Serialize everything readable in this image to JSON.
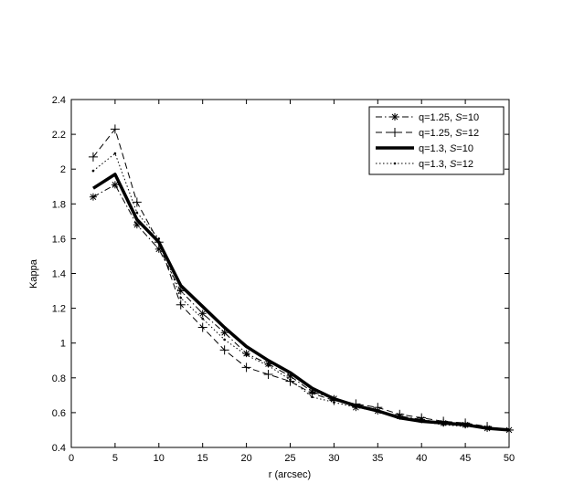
{
  "chart_data": {
    "type": "line",
    "xlabel": "r (arcsec)",
    "ylabel": "Kappa",
    "xlim": [
      0,
      50
    ],
    "ylim": [
      0.4,
      2.4
    ],
    "x_ticks": [
      0,
      5,
      10,
      15,
      20,
      25,
      30,
      35,
      40,
      45,
      50
    ],
    "y_ticks": [
      0.4,
      0.6,
      0.8,
      1.0,
      1.2,
      1.4,
      1.6,
      1.8,
      2.0,
      2.2,
      2.4
    ],
    "x_tick_labels": [
      "0",
      "5",
      "10",
      "15",
      "20",
      "25",
      "30",
      "35",
      "40",
      "45",
      "50"
    ],
    "y_tick_labels": [
      "0.4",
      "0.6",
      "0.8",
      "1",
      "1.2",
      "1.4",
      "1.6",
      "1.8",
      "2",
      "2.2",
      "2.4"
    ],
    "grid": false,
    "legend_position": "top-right",
    "series": [
      {
        "name_parts": [
          "q=1.25, ",
          "S",
          "=10"
        ],
        "style": "dashdot",
        "marker": "star",
        "x": [
          2.5,
          5,
          7.5,
          10,
          12.5,
          15,
          17.5,
          20,
          22.5,
          25,
          27.5,
          30,
          32.5,
          35,
          37.5,
          40,
          42.5,
          45,
          47.5,
          50
        ],
        "values": [
          1.84,
          1.91,
          1.68,
          1.54,
          1.3,
          1.17,
          1.06,
          0.94,
          0.88,
          0.81,
          0.72,
          0.68,
          0.63,
          0.61,
          0.58,
          0.56,
          0.54,
          0.53,
          0.51,
          0.5
        ]
      },
      {
        "name_parts": [
          "q=1.25, ",
          "S",
          "=12"
        ],
        "style": "dashed",
        "marker": "plus",
        "x": [
          2.5,
          5,
          7.5,
          10,
          12.5,
          15,
          17.5,
          20,
          22.5,
          25,
          27.5,
          30,
          32.5,
          35,
          37.5,
          40,
          42.5,
          45,
          47.5,
          50
        ],
        "values": [
          2.07,
          2.23,
          1.81,
          1.58,
          1.22,
          1.09,
          0.96,
          0.86,
          0.82,
          0.78,
          0.71,
          0.67,
          0.65,
          0.63,
          0.59,
          0.57,
          0.55,
          0.54,
          0.52,
          0.5
        ]
      },
      {
        "name_parts": [
          "q=1.3, ",
          "S",
          "=10"
        ],
        "style": "solid-thick",
        "marker": "none",
        "x": [
          2.5,
          5,
          7.5,
          10,
          12.5,
          15,
          17.5,
          20,
          22.5,
          25,
          27.5,
          30,
          32.5,
          35,
          37.5,
          40,
          42.5,
          45,
          47.5,
          50
        ],
        "values": [
          1.89,
          1.97,
          1.71,
          1.58,
          1.33,
          1.21,
          1.09,
          0.98,
          0.9,
          0.83,
          0.74,
          0.68,
          0.64,
          0.61,
          0.57,
          0.55,
          0.54,
          0.53,
          0.51,
          0.5
        ]
      },
      {
        "name_parts": [
          "q=1.3, ",
          "S",
          "=12"
        ],
        "style": "dotted",
        "marker": "dot",
        "x": [
          2.5,
          5,
          7.5,
          10,
          12.5,
          15,
          17.5,
          20,
          22.5,
          25,
          27.5,
          30,
          32.5,
          35,
          37.5,
          40,
          42.5,
          45,
          47.5,
          50
        ],
        "values": [
          1.99,
          2.09,
          1.75,
          1.6,
          1.26,
          1.14,
          1.02,
          0.93,
          0.87,
          0.79,
          0.69,
          0.66,
          0.63,
          0.61,
          0.57,
          0.55,
          0.53,
          0.52,
          0.51,
          0.5
        ]
      }
    ]
  }
}
